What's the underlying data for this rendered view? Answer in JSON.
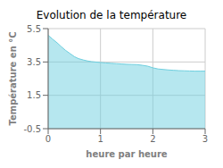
{
  "chart_data": {
    "type": "area",
    "title": "Evolution de la température",
    "x_label": "heure par heure",
    "y_label": "Température en °C",
    "x": [
      0,
      0.08,
      0.17,
      0.25,
      0.33,
      0.42,
      0.5,
      0.58,
      0.67,
      0.75,
      0.83,
      0.92,
      1.0,
      1.1,
      1.2,
      1.3,
      1.4,
      1.5,
      1.6,
      1.7,
      1.8,
      1.9,
      2.0,
      2.1,
      2.2,
      2.3,
      2.4,
      2.5,
      2.6,
      2.7,
      2.8,
      2.9,
      3.0
    ],
    "values": [
      5.1,
      4.88,
      4.65,
      4.42,
      4.2,
      4.0,
      3.82,
      3.7,
      3.62,
      3.56,
      3.52,
      3.49,
      3.47,
      3.44,
      3.42,
      3.4,
      3.38,
      3.36,
      3.35,
      3.34,
      3.3,
      3.25,
      3.15,
      3.08,
      3.05,
      3.02,
      3.0,
      2.98,
      2.97,
      2.96,
      2.95,
      2.95,
      2.95
    ],
    "color": "#6ecfdf",
    "xlim": [
      0,
      3
    ],
    "ylim": [
      -0.5,
      5.5
    ],
    "xticks": [
      0,
      1,
      2,
      3
    ],
    "yticks": [
      -0.5,
      1.5,
      3.5,
      5.5
    ],
    "grid": true
  }
}
